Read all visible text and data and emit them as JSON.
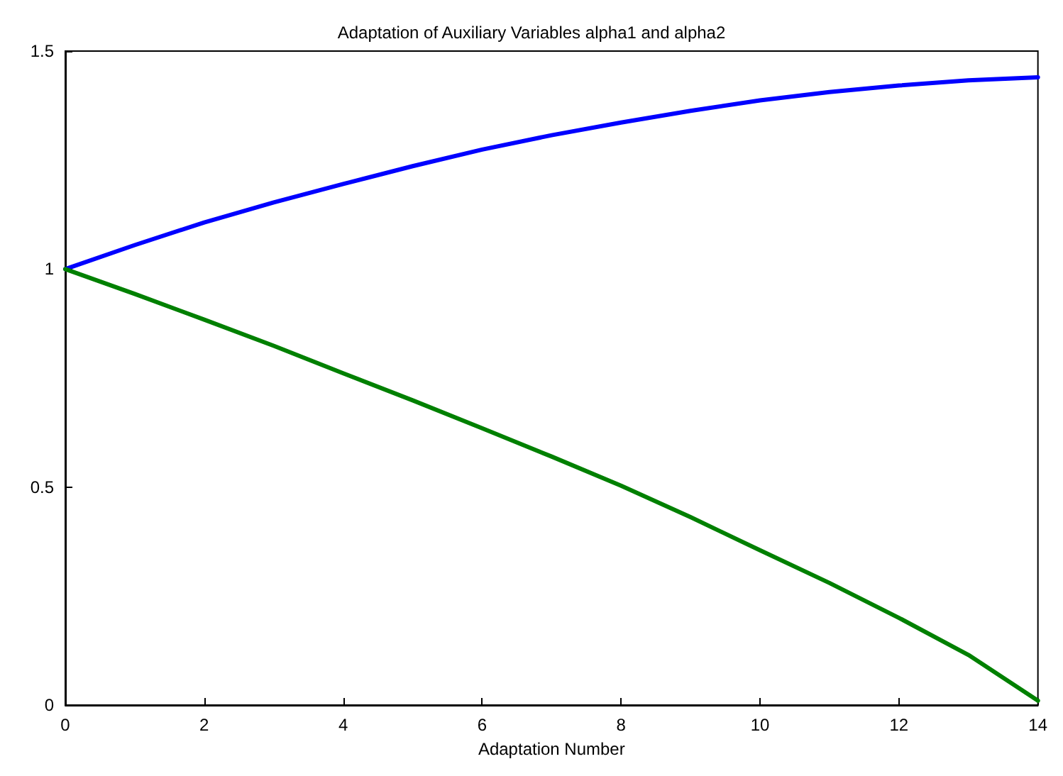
{
  "chart_data": {
    "type": "line",
    "title": "Adaptation of Auxiliary Variables alpha1 and alpha2",
    "xlabel": "Adaptation Number",
    "x": [
      0,
      1,
      2,
      3,
      4,
      5,
      6,
      7,
      8,
      9,
      10,
      11,
      12,
      13,
      14
    ],
    "series": [
      {
        "color": "#0000ff",
        "values": [
          1.0,
          1.055,
          1.107,
          1.153,
          1.195,
          1.236,
          1.274,
          1.307,
          1.336,
          1.363,
          1.387,
          1.406,
          1.421,
          1.433,
          1.44
        ]
      },
      {
        "color": "#008000",
        "values": [
          1.0,
          0.943,
          0.884,
          0.824,
          0.761,
          0.699,
          0.635,
          0.57,
          0.503,
          0.431,
          0.355,
          0.28,
          0.2,
          0.115,
          0.01
        ]
      }
    ],
    "xlim": [
      0,
      14
    ],
    "xticks": [
      0,
      2,
      4,
      6,
      8,
      10,
      12,
      14
    ],
    "ylim": [
      0,
      1.5
    ],
    "yticks": [
      0,
      0.5,
      1,
      1.5
    ]
  }
}
